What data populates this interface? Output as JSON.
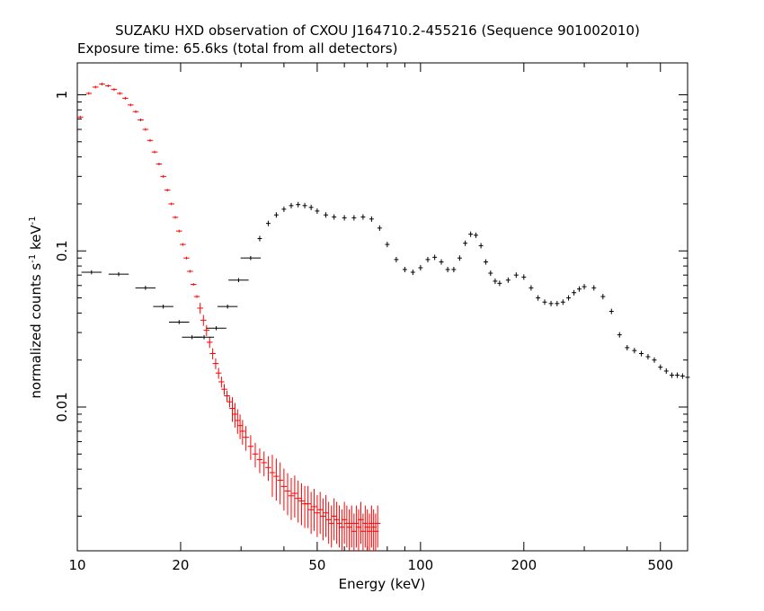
{
  "chart_data": {
    "type": "scatter",
    "title": "SUZAKU HXD observation of CXOU J164710.2-455216 (Sequence 901002010)",
    "subtitle": "Exposure time: 65.6ks (total from all detectors)",
    "xlabel": "Energy (keV)",
    "ylabel_base": "normalized counts s",
    "ylabel_mid": " keV",
    "ylabel_exp": "-1",
    "x_scale": "log",
    "y_scale": "log",
    "xlim": [
      10,
      600
    ],
    "ylim": [
      0.0012,
      1.6
    ],
    "x_ticks": [
      10,
      20,
      50,
      100,
      200,
      500
    ],
    "x_tick_labels": [
      "10",
      "20",
      "50",
      "100",
      "200",
      "500"
    ],
    "y_ticks": [
      0.01,
      0.1,
      1
    ],
    "y_tick_labels": [
      "0.01",
      "0.1",
      "1"
    ],
    "grid": false,
    "series": [
      {
        "color": "#ff0000",
        "x": [
          10.2,
          10.8,
          11.3,
          11.8,
          12.3,
          12.8,
          13.3,
          13.8,
          14.3,
          14.8,
          15.3,
          15.8,
          16.3,
          16.8,
          17.3,
          17.8,
          18.3,
          18.8,
          19.3,
          19.8,
          20.3,
          20.8,
          21.3,
          21.8,
          22.3,
          22.8,
          23.3,
          23.8,
          24.3,
          24.8,
          25.3,
          25.8,
          26.3,
          26.8,
          27.3,
          27.8,
          28.3,
          28.8,
          29.3,
          29.8,
          30.3,
          31,
          32,
          33,
          34,
          35,
          36,
          37,
          38,
          39,
          40,
          41,
          42,
          43,
          44,
          45,
          46,
          47,
          48,
          49,
          50,
          51,
          52,
          53,
          54,
          55,
          56,
          57,
          58,
          59,
          60,
          61,
          62,
          63,
          64,
          65,
          66,
          67,
          68,
          69,
          70,
          71,
          72,
          73,
          74,
          75
        ],
        "y": [
          0.72,
          1.02,
          1.12,
          1.17,
          1.14,
          1.08,
          1.02,
          0.95,
          0.86,
          0.78,
          0.69,
          0.6,
          0.51,
          0.43,
          0.36,
          0.3,
          0.245,
          0.2,
          0.164,
          0.134,
          0.11,
          0.09,
          0.074,
          0.061,
          0.051,
          0.043,
          0.036,
          0.031,
          0.026,
          0.022,
          0.019,
          0.0165,
          0.0145,
          0.013,
          0.0118,
          0.0108,
          0.0098,
          0.009,
          0.0082,
          0.0076,
          0.007,
          0.0064,
          0.0056,
          0.005,
          0.0046,
          0.0044,
          0.0041,
          0.0038,
          0.0036,
          0.0034,
          0.0031,
          0.0029,
          0.0027,
          0.0028,
          0.0026,
          0.0025,
          0.0024,
          0.0024,
          0.0022,
          0.0023,
          0.0021,
          0.0022,
          0.002,
          0.0021,
          0.0019,
          0.0018,
          0.002,
          0.0019,
          0.0018,
          0.0017,
          0.0019,
          0.0018,
          0.0017,
          0.0018,
          0.0016,
          0.0018,
          0.0017,
          0.0019,
          0.0016,
          0.0018,
          0.0017,
          0.0016,
          0.0018,
          0.0017,
          0.0016,
          0.0018
        ]
      },
      {
        "color": "#000000",
        "binned_x": [
          11,
          13.2,
          15.8,
          17.8,
          19.8,
          21.6,
          23.4,
          25.4,
          27.4,
          29.5,
          32
        ],
        "binned_y": [
          0.073,
          0.071,
          0.058,
          0.044,
          0.035,
          0.028,
          0.028,
          0.032,
          0.044,
          0.065,
          0.09
        ],
        "x": [
          34,
          36,
          38,
          40,
          42,
          44,
          46,
          48,
          50,
          53,
          56,
          60,
          64,
          68,
          72,
          76,
          80,
          85,
          90,
          95,
          100,
          105,
          110,
          115,
          120,
          125,
          130,
          135,
          140,
          145,
          150,
          155,
          160,
          165,
          170,
          180,
          190,
          200,
          210,
          220,
          230,
          240,
          250,
          260,
          270,
          280,
          290,
          300,
          320,
          340,
          360,
          380,
          400,
          420,
          440,
          460,
          480,
          500,
          520,
          540,
          560,
          580,
          600
        ],
        "y": [
          0.12,
          0.15,
          0.17,
          0.185,
          0.195,
          0.198,
          0.195,
          0.19,
          0.18,
          0.17,
          0.165,
          0.163,
          0.163,
          0.165,
          0.16,
          0.14,
          0.11,
          0.088,
          0.076,
          0.073,
          0.078,
          0.088,
          0.091,
          0.085,
          0.076,
          0.076,
          0.09,
          0.112,
          0.128,
          0.126,
          0.108,
          0.085,
          0.072,
          0.064,
          0.062,
          0.065,
          0.07,
          0.068,
          0.058,
          0.05,
          0.047,
          0.046,
          0.046,
          0.047,
          0.05,
          0.054,
          0.057,
          0.059,
          0.058,
          0.051,
          0.041,
          0.029,
          0.024,
          0.023,
          0.022,
          0.021,
          0.02,
          0.018,
          0.017,
          0.016,
          0.016,
          0.0158,
          0.0155
        ]
      }
    ]
  }
}
